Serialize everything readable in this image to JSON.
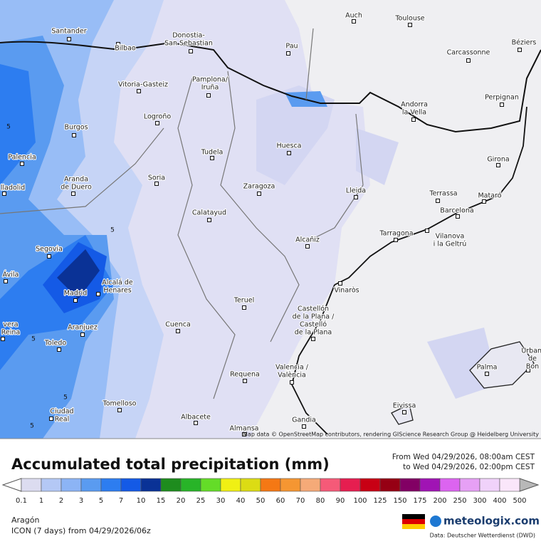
{
  "map": {
    "attribution": "Map data © OpenStreetMap contributors, rendering GIScience Research Group @ Heidelberg University",
    "cities": [
      {
        "lines": [
          "Santander"
        ]
      },
      {
        "lines": [
          "Bilbao"
        ]
      },
      {
        "lines": [
          "Donostia-",
          "San Sebastian"
        ]
      },
      {
        "lines": [
          "Pau"
        ]
      },
      {
        "lines": [
          "Auch"
        ]
      },
      {
        "lines": [
          "Toulouse"
        ]
      },
      {
        "lines": [
          "Carcassonne"
        ]
      },
      {
        "lines": [
          "Béziers"
        ]
      },
      {
        "lines": [
          "Vitoria-Gasteiz"
        ]
      },
      {
        "lines": [
          "Pamplona/",
          "Iruña"
        ]
      },
      {
        "lines": [
          "Andorra",
          "la Vella"
        ]
      },
      {
        "lines": [
          "Perpignan"
        ]
      },
      {
        "lines": [
          "Burgos"
        ]
      },
      {
        "lines": [
          "Logroño"
        ]
      },
      {
        "lines": [
          "Tudela"
        ]
      },
      {
        "lines": [
          "Huesca"
        ]
      },
      {
        "lines": [
          "Palencia"
        ]
      },
      {
        "lines": [
          "Girona"
        ]
      },
      {
        "lines": [
          "Aranda",
          "de Duero"
        ]
      },
      {
        "lines": [
          "Soria"
        ]
      },
      {
        "lines": [
          "Zaragoza"
        ]
      },
      {
        "lines": [
          "Lleida"
        ]
      },
      {
        "lines": [
          "lladolid"
        ]
      },
      {
        "lines": [
          "Terrassa"
        ]
      },
      {
        "lines": [
          "Mataró"
        ]
      },
      {
        "lines": [
          "Barcelona"
        ]
      },
      {
        "lines": [
          "Calatayud"
        ]
      },
      {
        "lines": [
          "Tarragona"
        ]
      },
      {
        "lines": [
          "Vilanova",
          "i la Geltrú"
        ]
      },
      {
        "lines": [
          "Alcañiz"
        ]
      },
      {
        "lines": [
          "Segovia"
        ]
      },
      {
        "lines": [
          "Ávila"
        ]
      },
      {
        "lines": [
          "Alcalá de",
          "Henares"
        ]
      },
      {
        "lines": [
          "Madrid"
        ]
      },
      {
        "lines": [
          "Vinaròs"
        ]
      },
      {
        "lines": [
          "Teruel"
        ]
      },
      {
        "lines": [
          "Castellón",
          "de la Plana /",
          "Castelló",
          "de la Plana"
        ]
      },
      {
        "lines": [
          "Cuenca"
        ]
      },
      {
        "lines": [
          "Aranjuez"
        ]
      },
      {
        "lines": [
          "vera",
          "Reina"
        ]
      },
      {
        "lines": [
          "Toledo"
        ]
      },
      {
        "lines": [
          "Palma"
        ]
      },
      {
        "lines": [
          "Urbani",
          "de",
          "Bon"
        ]
      },
      {
        "lines": [
          "Valencia /",
          "València"
        ]
      },
      {
        "lines": [
          "Requena"
        ]
      },
      {
        "lines": [
          "Tomelloso"
        ]
      },
      {
        "lines": [
          "Ciudad",
          "Real"
        ]
      },
      {
        "lines": [
          "Eivissa"
        ]
      },
      {
        "lines": [
          "Albacete"
        ]
      },
      {
        "lines": [
          "Gandia"
        ]
      },
      {
        "lines": [
          "Almansa"
        ]
      }
    ],
    "contour_labels": [
      "5",
      "5",
      "5",
      "5",
      "5"
    ]
  },
  "footer": {
    "title": "Accumulated total precipitation (mm)",
    "from": "From Wed 04/29/2026, 08:00am CEST",
    "to": "to Wed 04/29/2026, 02:00pm CEST",
    "region": "Aragón",
    "model": "ICON (7 days)  from  04/29/2026/06z",
    "brand": "meteologix.com",
    "source": "Data: Deutscher Wetterdienst (DWD)"
  },
  "legend": {
    "labels": [
      "0.1",
      "1",
      "2",
      "3",
      "5",
      "7",
      "10",
      "15",
      "20",
      "25",
      "30",
      "40",
      "50",
      "60",
      "70",
      "80",
      "90",
      "100",
      "125",
      "150",
      "175",
      "200",
      "250",
      "300",
      "400",
      "500"
    ],
    "colors": [
      "#dcdcf0",
      "#b4c8f5",
      "#8cb4f5",
      "#5a9bf0",
      "#2d7df0",
      "#145ae6",
      "#0a3296",
      "#1e8c1e",
      "#28b428",
      "#64dc28",
      "#f0f014",
      "#dcdc14",
      "#f57814",
      "#f59632",
      "#f5aa78",
      "#f55a78",
      "#e61e50",
      "#c80014",
      "#960014",
      "#820064",
      "#a014b4",
      "#dc64f0",
      "#e6a0f5",
      "#f0d2fa",
      "#fae6fa"
    ]
  }
}
